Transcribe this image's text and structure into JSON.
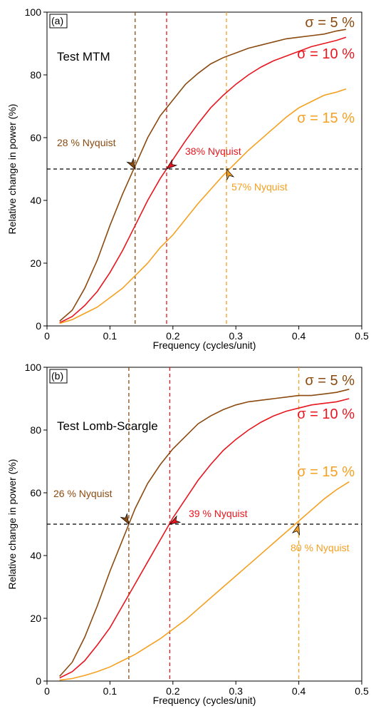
{
  "chart_data": [
    {
      "type": "line",
      "panel_label": "(a)",
      "title": "Test MTM",
      "xlabel": "Frequency (cycles/unit)",
      "ylabel": "Relative change in power (%)",
      "x": [
        0.02,
        0.04,
        0.06,
        0.08,
        0.1,
        0.12,
        0.14,
        0.16,
        0.18,
        0.2,
        0.22,
        0.24,
        0.26,
        0.28,
        0.3,
        0.32,
        0.34,
        0.36,
        0.38,
        0.4,
        0.42,
        0.44,
        0.46,
        0.475
      ],
      "series": [
        {
          "name": "σ = 5 %",
          "color": "#8b4a0f",
          "values": [
            1.5,
            5,
            12,
            21,
            32,
            42,
            51,
            60,
            67,
            72,
            77,
            80.5,
            83.5,
            85.5,
            87,
            88.5,
            89.5,
            90.5,
            91.5,
            92,
            92.5,
            93,
            94,
            94.5
          ]
        },
        {
          "name": "σ = 10 %",
          "color": "#e8161e",
          "values": [
            1,
            3,
            6.5,
            11,
            17,
            24,
            32,
            40,
            47,
            53,
            59,
            64.5,
            69.5,
            73.5,
            77,
            80,
            82.5,
            84.5,
            86,
            87.5,
            89,
            90,
            91,
            92
          ]
        },
        {
          "name": "σ = 15 %",
          "color": "#f5a020",
          "values": [
            0.8,
            2,
            4,
            6,
            9,
            12,
            16,
            20,
            25,
            29,
            34,
            39,
            43.5,
            48,
            52,
            56,
            59.5,
            63,
            66.5,
            69.5,
            71.5,
            73.5,
            74.5,
            75.5
          ]
        }
      ],
      "markers": [
        {
          "x": 0.14,
          "label": "28 % Nyquist",
          "color": "#8b4a0f"
        },
        {
          "x": 0.19,
          "label": "38% Nyquist",
          "color": "#e8161e"
        },
        {
          "x": 0.285,
          "label": "57% Nyquist",
          "color": "#f5a020"
        }
      ],
      "reference_y": 50,
      "xlim": [
        0,
        0.5
      ],
      "ylim": [
        0,
        100
      ],
      "xticks": [
        0,
        0.1,
        0.2,
        0.3,
        0.4,
        0.5
      ],
      "yticks": [
        0,
        20,
        40,
        60,
        80,
        100
      ]
    },
    {
      "type": "line",
      "panel_label": "(b)",
      "title": "Test Lomb-Scargle",
      "xlabel": "Frequency (cycles/unit)",
      "ylabel": "Relative change in power (%)",
      "x": [
        0.02,
        0.04,
        0.06,
        0.08,
        0.1,
        0.12,
        0.14,
        0.16,
        0.18,
        0.2,
        0.22,
        0.24,
        0.26,
        0.28,
        0.3,
        0.32,
        0.34,
        0.36,
        0.38,
        0.4,
        0.42,
        0.44,
        0.46,
        0.48
      ],
      "series": [
        {
          "name": "σ = 5 %",
          "color": "#8b4a0f",
          "values": [
            1.5,
            6,
            14,
            24,
            35,
            45,
            55,
            63,
            69,
            74,
            78,
            82,
            84.5,
            86.5,
            88,
            89,
            89.5,
            90,
            90.5,
            91,
            91,
            91.5,
            92,
            93
          ]
        },
        {
          "name": "σ = 10 %",
          "color": "#e8161e",
          "values": [
            1,
            3,
            6.5,
            11.5,
            17,
            24,
            31,
            38,
            45,
            52,
            58,
            64,
            69,
            73.5,
            77,
            80,
            82.5,
            84.5,
            86,
            87,
            88,
            88.5,
            89,
            90
          ]
        },
        {
          "name": "σ = 15 %",
          "color": "#f5a020",
          "values": [
            0.3,
            0.8,
            1.8,
            3,
            4.5,
            6.5,
            8.5,
            11,
            13.5,
            16.5,
            19.5,
            23,
            26.5,
            30,
            33.5,
            37,
            40.5,
            44,
            47.5,
            51,
            54.5,
            58,
            61,
            63.5
          ]
        }
      ],
      "markers": [
        {
          "x": 0.13,
          "label": "26 % Nyquist",
          "color": "#8b4a0f"
        },
        {
          "x": 0.195,
          "label": "39 % Nyquist",
          "color": "#e8161e"
        },
        {
          "x": 0.4,
          "label": "80 % Nyquist",
          "color": "#f5a020"
        }
      ],
      "reference_y": 50,
      "xlim": [
        0,
        0.5
      ],
      "ylim": [
        0,
        100
      ],
      "xticks": [
        0,
        0.1,
        0.2,
        0.3,
        0.4,
        0.5
      ],
      "yticks": [
        0,
        20,
        40,
        60,
        80,
        100
      ]
    }
  ]
}
